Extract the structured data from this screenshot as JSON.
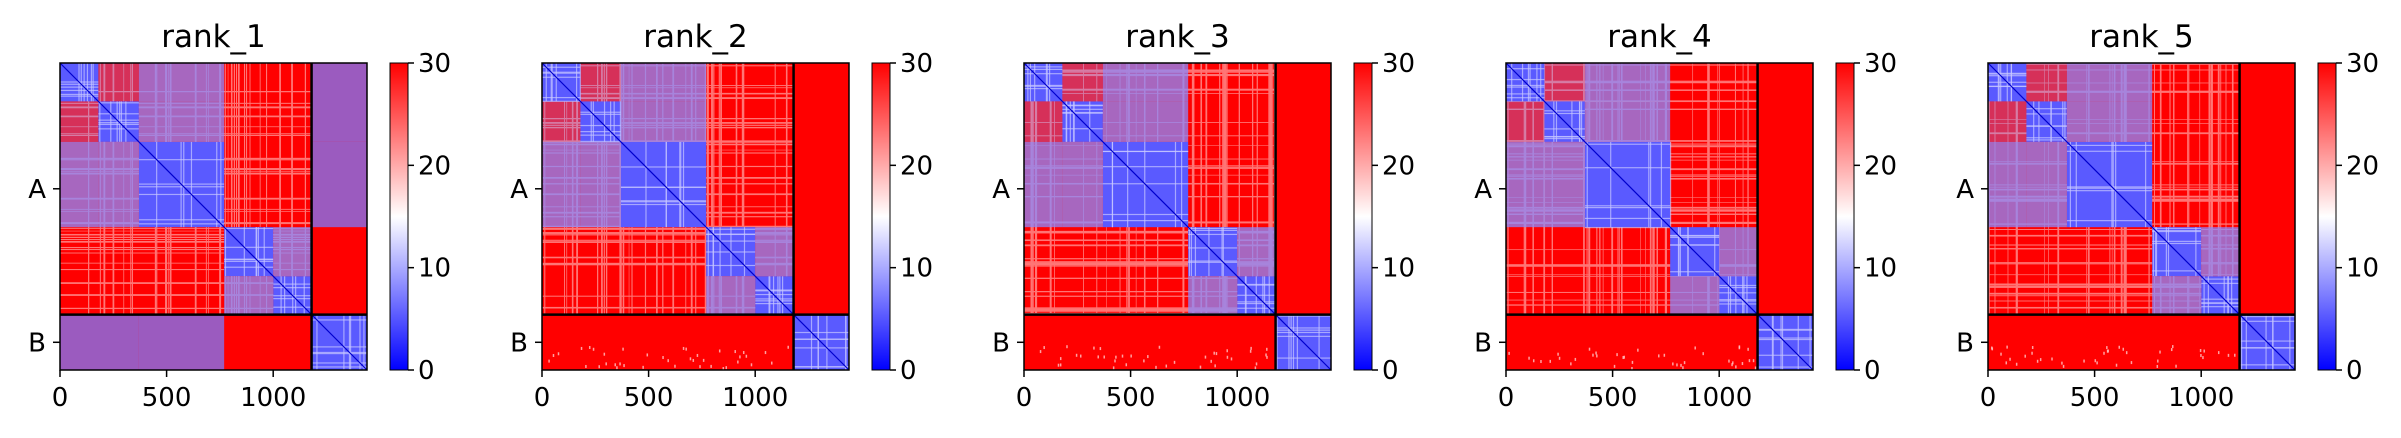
{
  "colors": {
    "low": "#0000ff",
    "mid": "#ffffff",
    "high": "#ff0000",
    "frame": "#000000"
  },
  "chart_data": [
    {
      "type": "heatmap",
      "title": "rank_1",
      "x_ticks": [
        0,
        500,
        1000
      ],
      "xlim": [
        0,
        1440
      ],
      "y_tick_labels": [
        "A",
        "B"
      ],
      "chain_break": 1180,
      "colorbar": {
        "min": 0,
        "max": 30,
        "ticks": [
          0,
          10,
          20,
          30
        ]
      },
      "blocks": [
        [
          0,
          180
        ],
        [
          180,
          370
        ],
        [
          370,
          770
        ],
        [
          770,
          1000
        ],
        [
          1000,
          1180
        ],
        [
          1180,
          1440
        ]
      ],
      "interchain_contact": true
    },
    {
      "type": "heatmap",
      "title": "rank_2",
      "x_ticks": [
        0,
        500,
        1000
      ],
      "xlim": [
        0,
        1440
      ],
      "y_tick_labels": [
        "A",
        "B"
      ],
      "chain_break": 1180,
      "colorbar": {
        "min": 0,
        "max": 30,
        "ticks": [
          0,
          10,
          20,
          30
        ]
      },
      "blocks": [
        [
          0,
          180
        ],
        [
          180,
          370
        ],
        [
          370,
          770
        ],
        [
          770,
          1000
        ],
        [
          1000,
          1180
        ],
        [
          1180,
          1440
        ]
      ],
      "interchain_contact": false
    },
    {
      "type": "heatmap",
      "title": "rank_3",
      "x_ticks": [
        0,
        500,
        1000
      ],
      "xlim": [
        0,
        1440
      ],
      "y_tick_labels": [
        "A",
        "B"
      ],
      "chain_break": 1180,
      "colorbar": {
        "min": 0,
        "max": 30,
        "ticks": [
          0,
          10,
          20,
          30
        ]
      },
      "blocks": [
        [
          0,
          180
        ],
        [
          180,
          370
        ],
        [
          370,
          770
        ],
        [
          770,
          1000
        ],
        [
          1000,
          1180
        ],
        [
          1180,
          1440
        ]
      ],
      "interchain_contact": false
    },
    {
      "type": "heatmap",
      "title": "rank_4",
      "x_ticks": [
        0,
        500,
        1000
      ],
      "xlim": [
        0,
        1440
      ],
      "y_tick_labels": [
        "A",
        "B"
      ],
      "chain_break": 1180,
      "colorbar": {
        "min": 0,
        "max": 30,
        "ticks": [
          0,
          10,
          20,
          30
        ]
      },
      "blocks": [
        [
          0,
          180
        ],
        [
          180,
          370
        ],
        [
          370,
          770
        ],
        [
          770,
          1000
        ],
        [
          1000,
          1180
        ],
        [
          1180,
          1440
        ]
      ],
      "interchain_contact": false
    },
    {
      "type": "heatmap",
      "title": "rank_5",
      "x_ticks": [
        0,
        500,
        1000
      ],
      "xlim": [
        0,
        1440
      ],
      "y_tick_labels": [
        "A",
        "B"
      ],
      "chain_break": 1180,
      "colorbar": {
        "min": 0,
        "max": 30,
        "ticks": [
          0,
          10,
          20,
          30
        ]
      },
      "blocks": [
        [
          0,
          180
        ],
        [
          180,
          370
        ],
        [
          370,
          770
        ],
        [
          770,
          1000
        ],
        [
          1000,
          1180
        ],
        [
          1180,
          1440
        ]
      ],
      "interchain_contact": false
    }
  ]
}
